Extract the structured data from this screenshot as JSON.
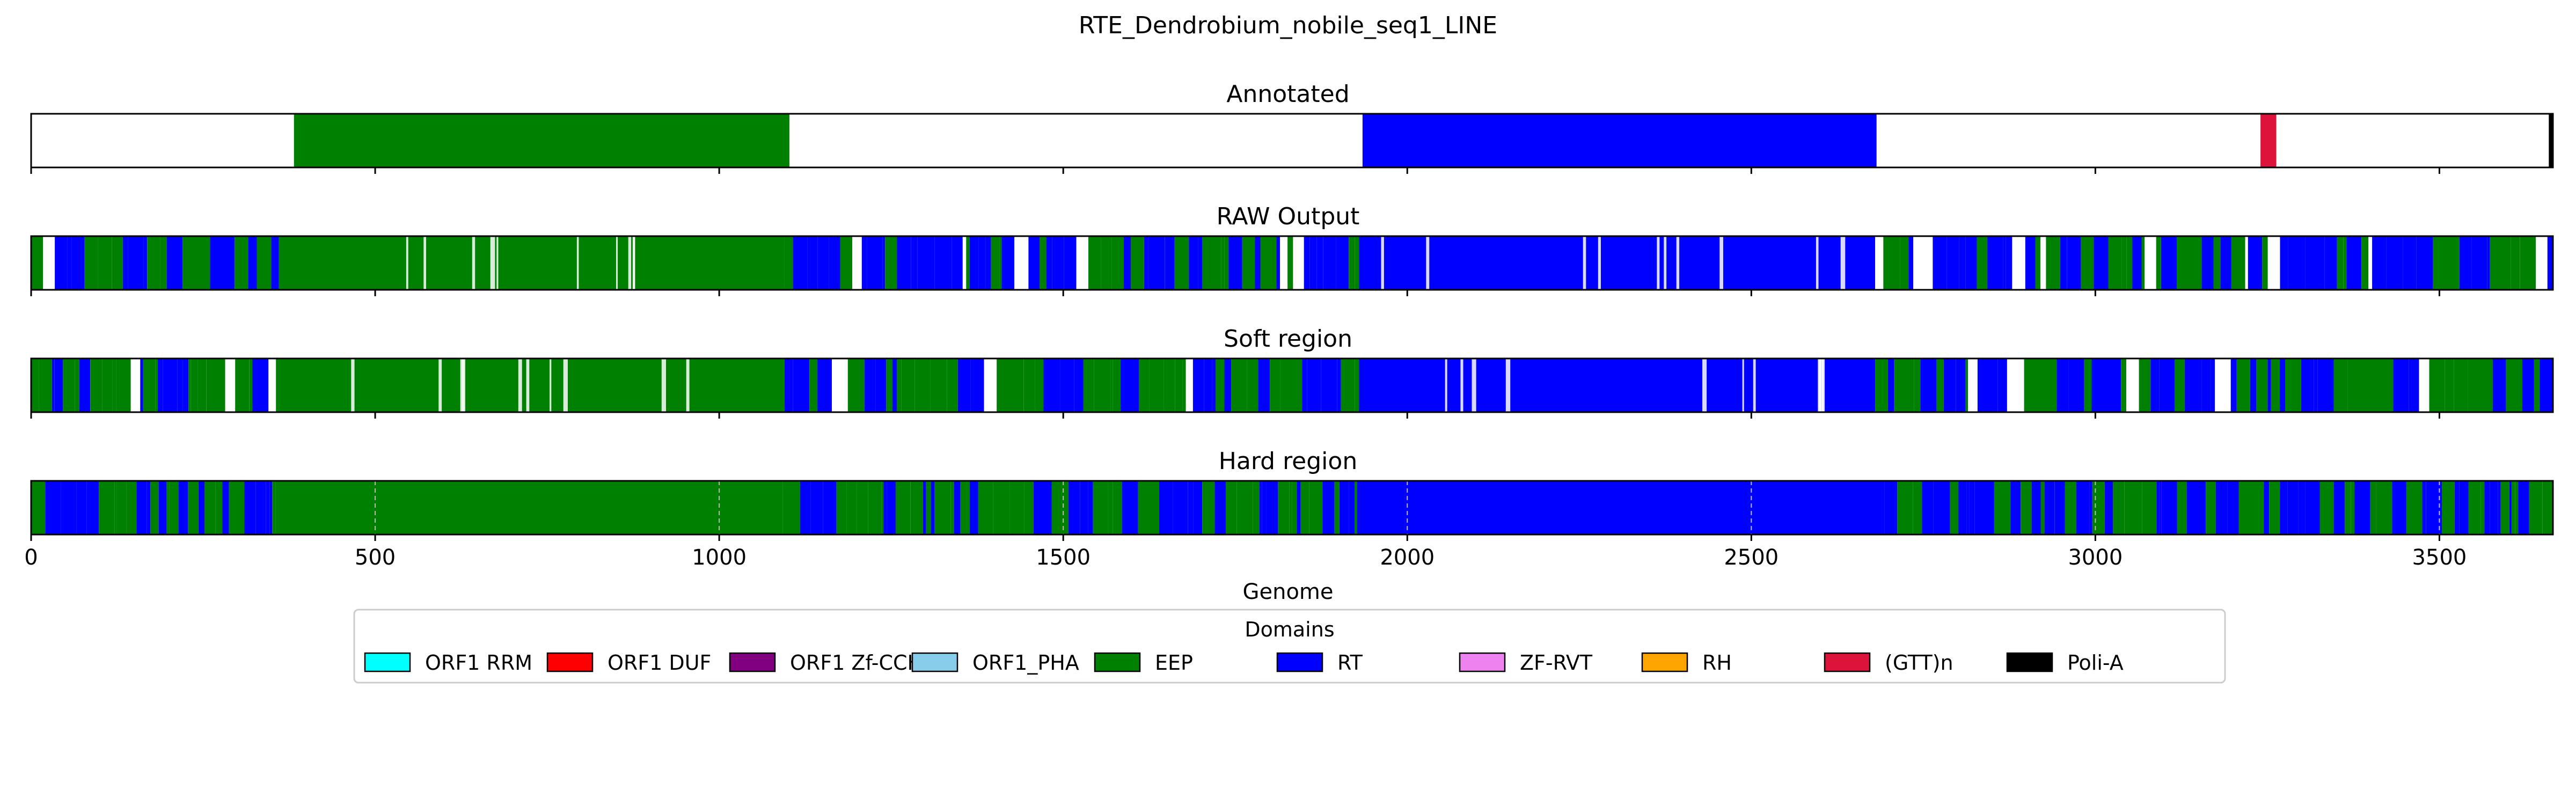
{
  "chart_data": {
    "type": "genome-track",
    "title": "RTE_Dendrobium_nobile_seq1_LINE",
    "xlabel": "Genome",
    "xlim": [
      0,
      3665
    ],
    "xticks": [
      0,
      500,
      1000,
      1500,
      2000,
      2500,
      3000,
      3500
    ],
    "tracks": [
      {
        "name": "Annotated",
        "segments": [
          {
            "start": 382,
            "end": 1102,
            "domain": "EEP"
          },
          {
            "start": 1935,
            "end": 2682,
            "domain": "RT"
          },
          {
            "start": 3240,
            "end": 3263,
            "domain": "(GTT)n"
          },
          {
            "start": 3659,
            "end": 3665,
            "domain": "Poli-A"
          }
        ]
      },
      {
        "name": "RAW Output",
        "segments": [
          {
            "start": 0,
            "end": 360,
            "domain": "mixed EEP/RT"
          },
          {
            "start": 360,
            "end": 1095,
            "domain": "EEP"
          },
          {
            "start": 1095,
            "end": 1930,
            "domain": "mixed EEP/RT"
          },
          {
            "start": 1930,
            "end": 2680,
            "domain": "RT"
          },
          {
            "start": 2680,
            "end": 3665,
            "domain": "mixed EEP/RT"
          }
        ]
      },
      {
        "name": "Soft region",
        "segments": [
          {
            "start": 0,
            "end": 360,
            "domain": "mixed EEP/RT"
          },
          {
            "start": 360,
            "end": 1095,
            "domain": "EEP"
          },
          {
            "start": 1095,
            "end": 1930,
            "domain": "mixed EEP/RT"
          },
          {
            "start": 1930,
            "end": 2680,
            "domain": "RT"
          },
          {
            "start": 2680,
            "end": 3665,
            "domain": "mixed EEP/RT"
          }
        ]
      },
      {
        "name": "Hard region",
        "segments": [
          {
            "start": 0,
            "end": 355,
            "domain": "mixed EEP/RT"
          },
          {
            "start": 355,
            "end": 1092,
            "domain": "EEP"
          },
          {
            "start": 1092,
            "end": 1930,
            "domain": "mixed EEP/RT"
          },
          {
            "start": 1930,
            "end": 2678,
            "domain": "RT"
          },
          {
            "start": 2678,
            "end": 3665,
            "domain": "mixed EEP/RT"
          }
        ]
      }
    ],
    "legend": {
      "title": "Domains",
      "placement": "bottom-center",
      "items": [
        {
          "label": "ORF1 RRM",
          "color": "#00ffff"
        },
        {
          "label": "ORF1 DUF",
          "color": "#ff0000"
        },
        {
          "label": "ORF1 Zf-CCHC",
          "color": "#800080"
        },
        {
          "label": "ORF1_PHA",
          "color": "#87ceeb"
        },
        {
          "label": "EEP",
          "color": "#008000"
        },
        {
          "label": "RT",
          "color": "#0000ff"
        },
        {
          "label": "ZF-RVT",
          "color": "#ee82ee"
        },
        {
          "label": "RH",
          "color": "#ffa500"
        },
        {
          "label": "(GTT)n",
          "color": "#dc143c"
        },
        {
          "label": "Poli-A",
          "color": "#000000"
        }
      ]
    }
  }
}
